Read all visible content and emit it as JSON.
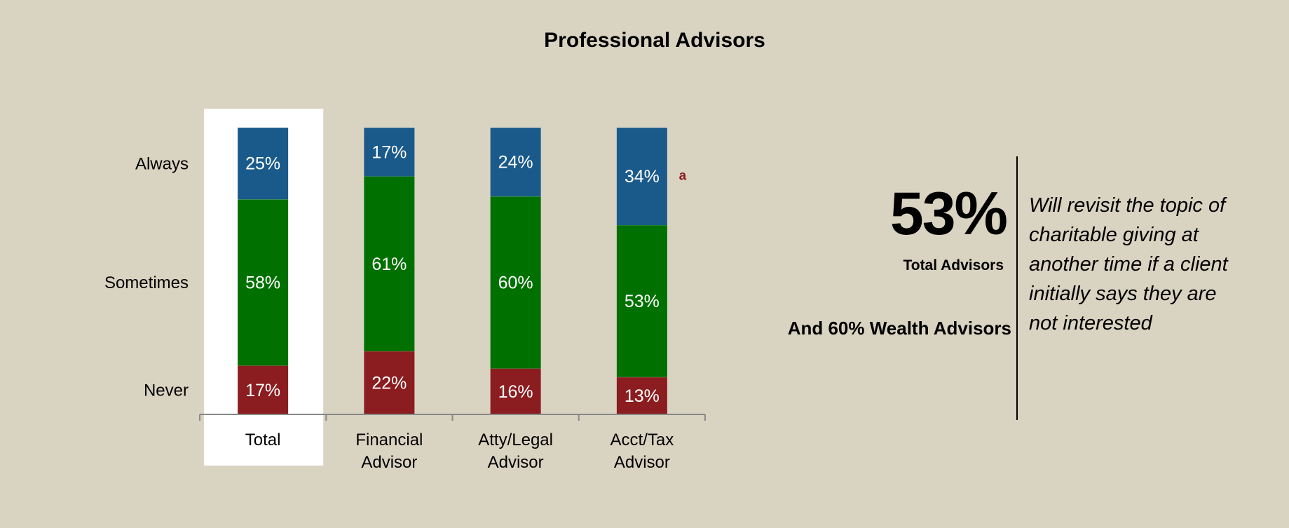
{
  "chart_data": {
    "type": "stacked_bar",
    "title": "Professional Advisors",
    "categories": [
      "Total",
      "Financial\nAdvisor",
      "Atty/Legal\nAdvisor",
      "Acct/Tax\nAdvisor"
    ],
    "ylim": [
      0,
      100
    ],
    "series": [
      {
        "name": "Never",
        "color": "#8b1c1f",
        "values": [
          17,
          22,
          16,
          13
        ],
        "value_labels": [
          "17%",
          "22%",
          "16%",
          "13%"
        ]
      },
      {
        "name": "Sometimes",
        "color": "#007000",
        "values": [
          58,
          61,
          60,
          53
        ],
        "value_labels": [
          "58%",
          "61%",
          "60%",
          "53%"
        ]
      },
      {
        "name": "Always",
        "color": "#1a5a8a",
        "values": [
          25,
          17,
          24,
          34
        ],
        "value_labels": [
          "25%",
          "17%",
          "24%",
          "34%"
        ]
      }
    ],
    "annotation": "a",
    "highlight_category": "Total"
  },
  "callout": {
    "value": "53%",
    "value_caption": "Total Advisors",
    "secondary": "And 60% Wealth Advisors",
    "text": "Will revisit the topic of\ncharitable giving at\nanother time if a client\ninitially says they are\nnot interested"
  }
}
